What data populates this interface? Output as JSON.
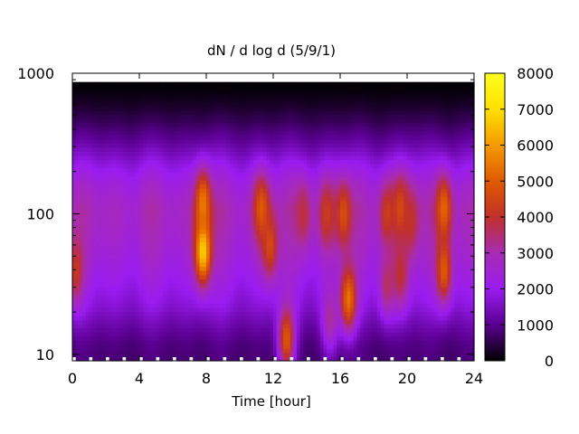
{
  "chart_data": {
    "type": "heatmap",
    "title": "dN / d log d (5/9/1)",
    "xlabel": "Time [hour]",
    "ylabel": "",
    "xlim": [
      0,
      24
    ],
    "ylim": [
      9,
      1000
    ],
    "y_scale": "log",
    "x_ticks": [
      "0",
      "4",
      "8",
      "12",
      "16",
      "20",
      "24"
    ],
    "y_ticks": [
      "10",
      "100",
      "1000"
    ],
    "colorbar": {
      "range": [
        0,
        8000
      ],
      "ticks": [
        "0",
        "1000",
        "2000",
        "3000",
        "4000",
        "5000",
        "6000",
        "7000",
        "8000"
      ],
      "colormap": [
        "#000000",
        "#5a0090",
        "#9a1cf0",
        "#a72bb4",
        "#c0302a",
        "#e05a00",
        "#f59a00",
        "#ffe000",
        "#ffff20"
      ]
    },
    "baseline_profile": [
      {
        "d": 9,
        "value": 900
      },
      {
        "d": 12,
        "value": 1000
      },
      {
        "d": 16,
        "value": 1400
      },
      {
        "d": 22,
        "value": 1900
      },
      {
        "d": 32,
        "value": 2300
      },
      {
        "d": 50,
        "value": 2700
      },
      {
        "d": 80,
        "value": 3000
      },
      {
        "d": 110,
        "value": 3100
      },
      {
        "d": 160,
        "value": 2700
      },
      {
        "d": 220,
        "value": 2100
      },
      {
        "d": 320,
        "value": 1300
      },
      {
        "d": 450,
        "value": 700
      },
      {
        "d": 600,
        "value": 300
      },
      {
        "d": 750,
        "value": 80
      },
      {
        "d": 900,
        "value": 0
      }
    ],
    "hotspots": [
      {
        "t": 0.2,
        "d": 40,
        "value": 4200
      },
      {
        "t": 7.8,
        "d": 55,
        "value": 6800
      },
      {
        "t": 7.8,
        "d": 120,
        "value": 5500
      },
      {
        "t": 11.3,
        "d": 110,
        "value": 5000
      },
      {
        "t": 11.8,
        "d": 60,
        "value": 4600
      },
      {
        "t": 12.8,
        "d": 13,
        "value": 5000
      },
      {
        "t": 13.8,
        "d": 100,
        "value": 3900
      },
      {
        "t": 15.2,
        "d": 100,
        "value": 4300
      },
      {
        "t": 15.4,
        "d": 18,
        "value": 3200
      },
      {
        "t": 16.2,
        "d": 100,
        "value": 4700
      },
      {
        "t": 16.5,
        "d": 25,
        "value": 5400
      },
      {
        "t": 18.8,
        "d": 100,
        "value": 4300
      },
      {
        "t": 18.8,
        "d": 32,
        "value": 3600
      },
      {
        "t": 19.6,
        "d": 110,
        "value": 4600
      },
      {
        "t": 19.6,
        "d": 38,
        "value": 4000
      },
      {
        "t": 20.2,
        "d": 90,
        "value": 4100
      },
      {
        "t": 22.2,
        "d": 110,
        "value": 5200
      },
      {
        "t": 22.2,
        "d": 40,
        "value": 5000
      }
    ]
  }
}
